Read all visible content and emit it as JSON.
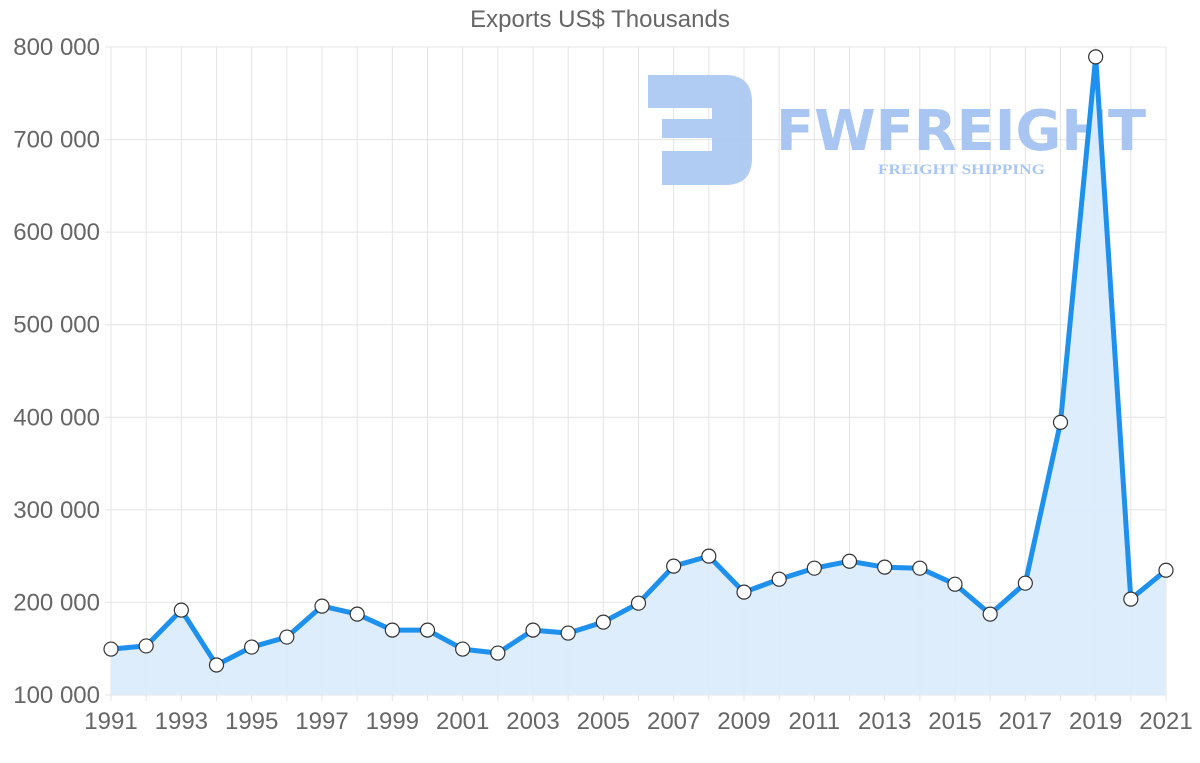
{
  "chart_data": {
    "type": "line",
    "title": "Exports US$ Thousands",
    "xlabel": "",
    "ylabel": "",
    "ylim": [
      100000,
      800000
    ],
    "yticks": [
      "100 000",
      "200 000",
      "300 000",
      "400 000",
      "500 000",
      "600 000",
      "700 000",
      "800 000"
    ],
    "xticks": [
      "1991",
      "1993",
      "1995",
      "1997",
      "1999",
      "2001",
      "2003",
      "2005",
      "2007",
      "2009",
      "2011",
      "2013",
      "2015",
      "2017",
      "2019",
      "2021"
    ],
    "grid": true,
    "legend": "none",
    "fill": true,
    "series": [
      {
        "name": "Exports US$ Thousands",
        "color": "#1e90ee",
        "fill_color": "#dbecfc",
        "x": [
          1991,
          1992,
          1993,
          1994,
          1995,
          1996,
          1997,
          1998,
          1999,
          2000,
          2001,
          2002,
          2003,
          2004,
          2005,
          2006,
          2007,
          2008,
          2009,
          2010,
          2011,
          2012,
          2013,
          2014,
          2015,
          2016,
          2017,
          2018,
          2019,
          2020,
          2021
        ],
        "values": [
          149600,
          153000,
          191700,
          132400,
          151800,
          162600,
          196000,
          187400,
          170100,
          170100,
          149600,
          145300,
          170100,
          166900,
          178700,
          199200,
          239200,
          250000,
          211100,
          225100,
          237000,
          244500,
          238100,
          237000,
          219700,
          187400,
          220800,
          394500,
          789300,
          203600,
          234800
        ]
      }
    ]
  },
  "watermark": {
    "brand": "FWFREIGHT",
    "tagline": "FREIGHT SHIPPING",
    "color": "#a9c6f2"
  }
}
